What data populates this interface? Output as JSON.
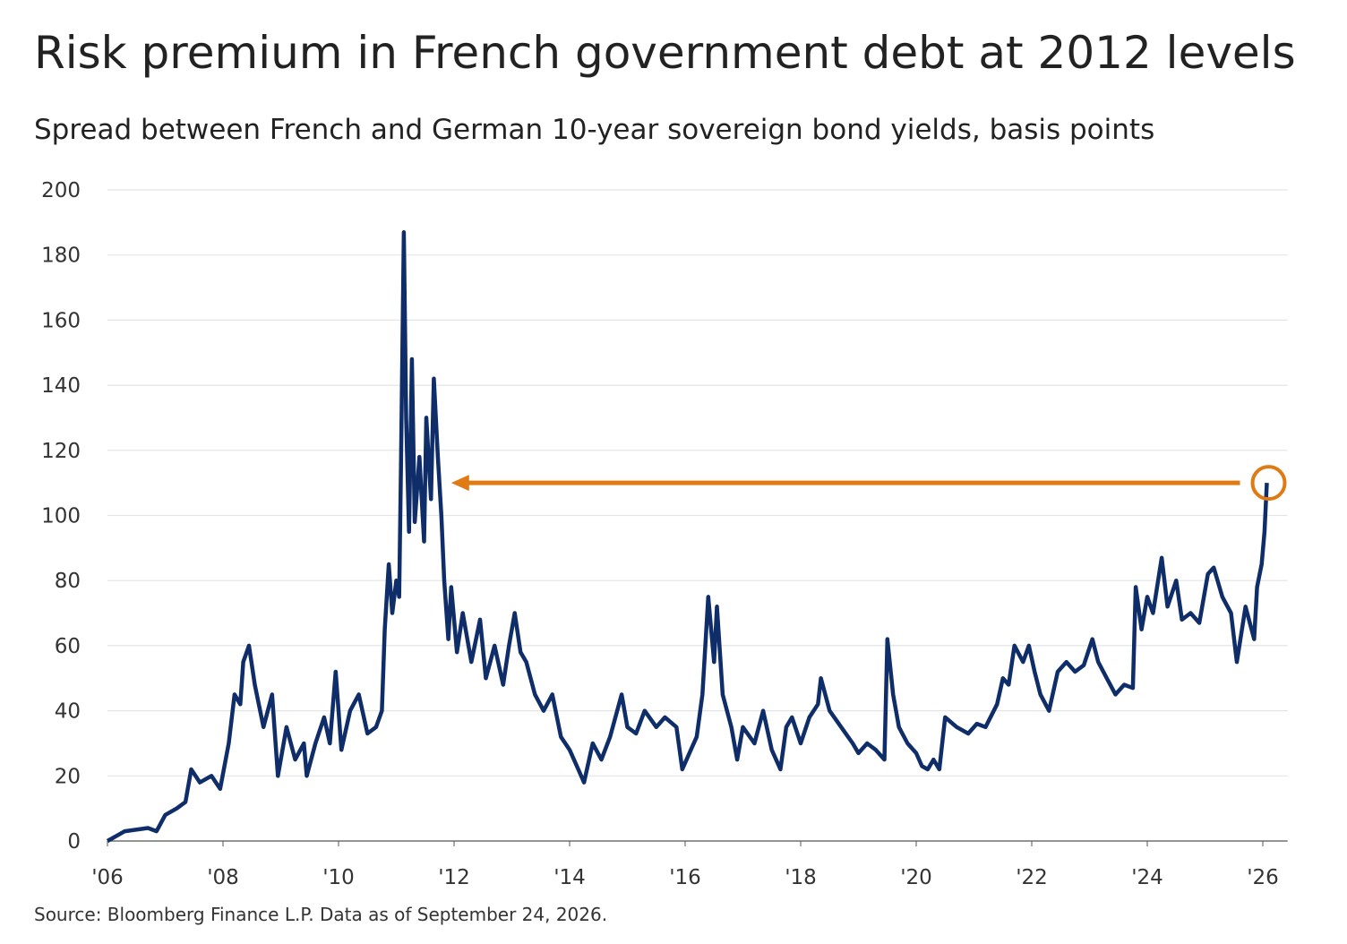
{
  "chart_data": {
    "type": "line",
    "title": "Risk premium in French government debt at 2012 levels",
    "subtitle": "Spread between French and German 10-year sovereign bond yields, basis points",
    "source": "Source: Bloomberg Finance L.P. Data as of September 24, 2026.",
    "x": [
      2006.0,
      2006.3,
      2006.7,
      2006.85,
      2007.0,
      2007.2,
      2007.35,
      2007.45,
      2007.6,
      2007.8,
      2007.95,
      2008.1,
      2008.2,
      2008.3,
      2008.35,
      2008.45,
      2008.55,
      2008.7,
      2008.85,
      2008.95,
      2009.1,
      2009.25,
      2009.4,
      2009.45,
      2009.6,
      2009.75,
      2009.85,
      2009.95,
      2010.05,
      2010.2,
      2010.35,
      2010.5,
      2010.65,
      2010.75,
      2010.8,
      2010.87,
      2010.93,
      2011.0,
      2011.05,
      2011.08,
      2011.13,
      2011.17,
      2011.22,
      2011.27,
      2011.32,
      2011.4,
      2011.48,
      2011.52,
      2011.6,
      2011.65,
      2011.72,
      2011.78,
      2011.83,
      2011.9,
      2011.95,
      2012.05,
      2012.15,
      2012.3,
      2012.45,
      2012.55,
      2012.7,
      2012.85,
      2012.95,
      2013.05,
      2013.15,
      2013.25,
      2013.4,
      2013.55,
      2013.7,
      2013.85,
      2014.0,
      2014.15,
      2014.25,
      2014.4,
      2014.55,
      2014.7,
      2014.9,
      2015.0,
      2015.15,
      2015.3,
      2015.5,
      2015.65,
      2015.85,
      2015.95,
      2016.1,
      2016.2,
      2016.3,
      2016.4,
      2016.5,
      2016.55,
      2016.65,
      2016.8,
      2016.9,
      2017.0,
      2017.2,
      2017.35,
      2017.5,
      2017.65,
      2017.75,
      2017.85,
      2018.0,
      2018.15,
      2018.3,
      2018.35,
      2018.5,
      2018.7,
      2018.9,
      2019.0,
      2019.15,
      2019.3,
      2019.45,
      2019.5,
      2019.6,
      2019.7,
      2019.85,
      2020.0,
      2020.1,
      2020.2,
      2020.3,
      2020.4,
      2020.5,
      2020.7,
      2020.9,
      2021.05,
      2021.2,
      2021.4,
      2021.5,
      2021.6,
      2021.7,
      2021.85,
      2021.95,
      2022.05,
      2022.15,
      2022.3,
      2022.45,
      2022.6,
      2022.75,
      2022.9,
      2023.05,
      2023.15,
      2023.3,
      2023.45,
      2023.6,
      2023.75,
      2023.8,
      2023.9,
      2024.0,
      2024.1,
      2024.25,
      2024.35,
      2024.5,
      2024.6,
      2024.75,
      2024.9,
      2025.05,
      2025.15,
      2025.3,
      2025.45,
      2025.55,
      2025.7,
      2025.85,
      2025.9,
      2025.98,
      2026.03,
      2026.07
    ],
    "series": [
      {
        "color": "#0f2d69",
        "values": [
          0,
          3,
          4,
          3,
          8,
          10,
          12,
          22,
          18,
          20,
          16,
          30,
          45,
          42,
          55,
          60,
          48,
          35,
          45,
          20,
          35,
          25,
          30,
          20,
          30,
          38,
          30,
          52,
          28,
          40,
          45,
          33,
          35,
          40,
          65,
          85,
          70,
          80,
          75,
          115,
          187,
          130,
          95,
          148,
          98,
          118,
          92,
          130,
          105,
          142,
          118,
          100,
          80,
          62,
          78,
          58,
          70,
          55,
          68,
          50,
          60,
          48,
          60,
          70,
          58,
          55,
          45,
          40,
          45,
          32,
          28,
          22,
          18,
          30,
          25,
          32,
          45,
          35,
          33,
          40,
          35,
          38,
          35,
          22,
          28,
          32,
          45,
          75,
          55,
          72,
          45,
          35,
          25,
          35,
          30,
          40,
          28,
          22,
          35,
          38,
          30,
          38,
          42,
          50,
          40,
          35,
          30,
          27,
          30,
          28,
          25,
          62,
          45,
          35,
          30,
          27,
          23,
          22,
          25,
          22,
          38,
          35,
          33,
          36,
          35,
          42,
          50,
          48,
          60,
          55,
          60,
          52,
          45,
          40,
          52,
          55,
          52,
          54,
          62,
          55,
          50,
          45,
          48,
          47,
          78,
          65,
          75,
          70,
          87,
          72,
          80,
          68,
          70,
          67,
          82,
          84,
          75,
          70,
          55,
          72,
          62,
          78,
          85,
          95,
          110
        ]
      }
    ],
    "highlight_color": "#e07a14",
    "xlim": [
      2006,
      2026.15
    ],
    "xticks": [
      {
        "value": 2006,
        "label": "'06"
      },
      {
        "value": 2008,
        "label": "'08"
      },
      {
        "value": 2010,
        "label": "'10"
      },
      {
        "value": 2012,
        "label": "'12"
      },
      {
        "value": 2014,
        "label": "'14"
      },
      {
        "value": 2016,
        "label": "'16"
      },
      {
        "value": 2018,
        "label": "'18"
      },
      {
        "value": 2020,
        "label": "'20"
      },
      {
        "value": 2022,
        "label": "'22"
      },
      {
        "value": 2024,
        "label": "'24"
      },
      {
        "value": 2026,
        "label": "'26"
      }
    ],
    "ylim": [
      0,
      200
    ],
    "yticks": [
      0,
      20,
      40,
      60,
      80,
      100,
      120,
      140,
      160,
      180,
      200
    ],
    "grid": true
  }
}
